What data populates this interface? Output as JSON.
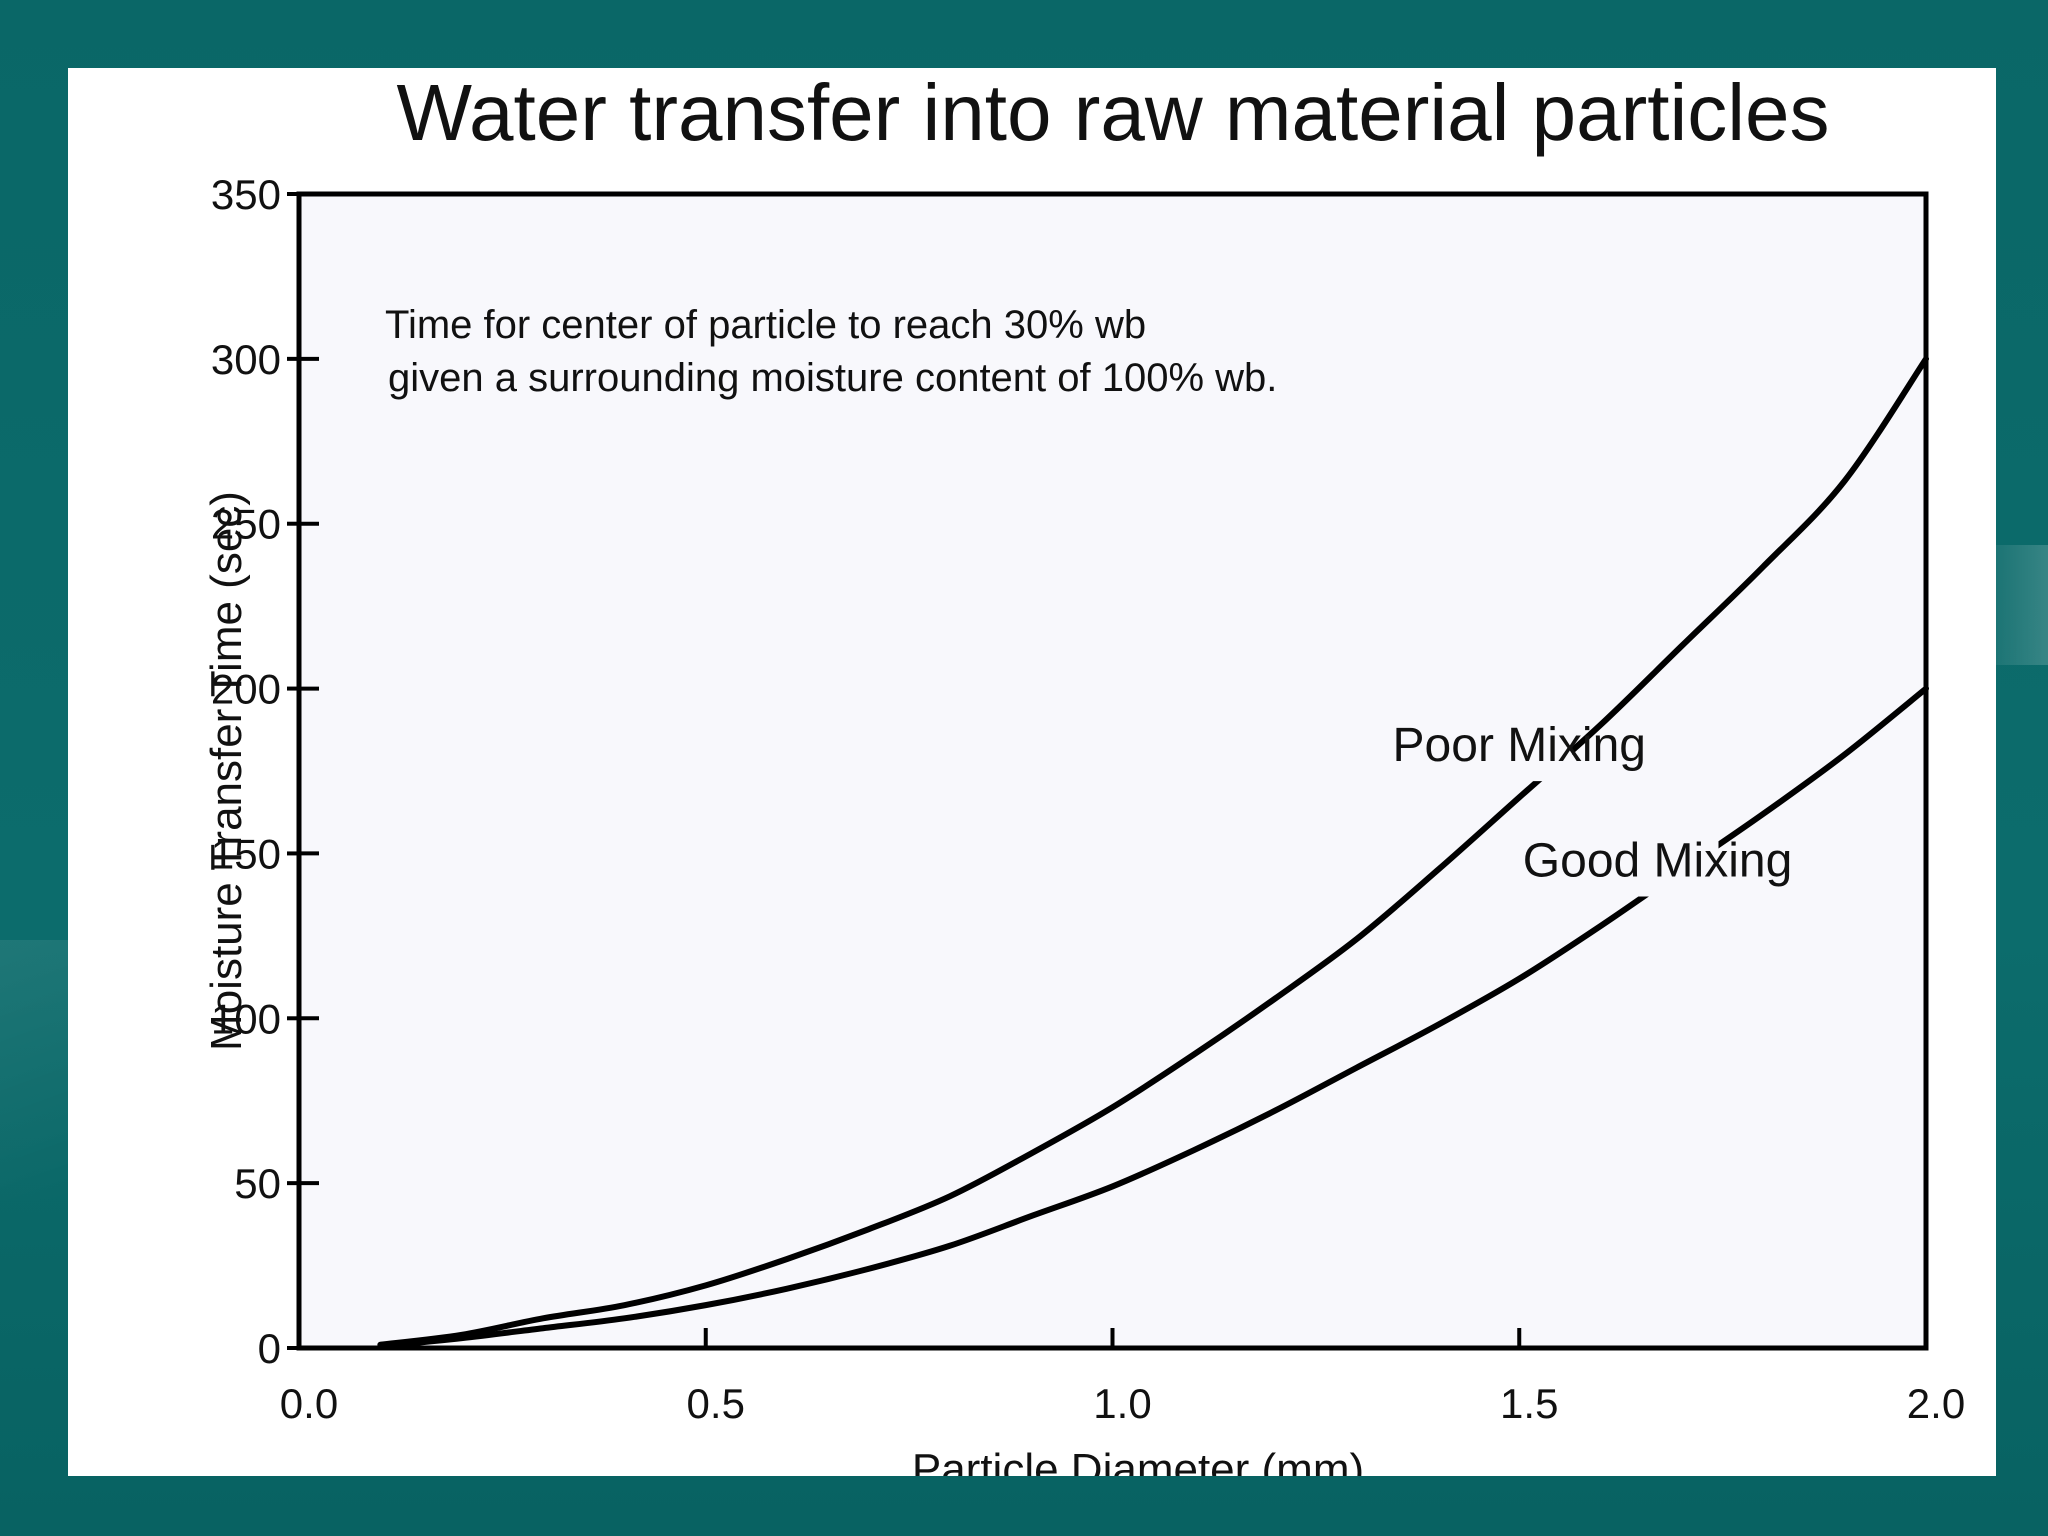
{
  "colors": {
    "background": "#0b6a6a",
    "slide": "#ffffff",
    "plot_area": "#f8f8fc",
    "ink": "#000000"
  },
  "chart_data": {
    "type": "line",
    "title": "Water transfer into raw material particles",
    "xlabel": "Particle Diameter (mm)",
    "ylabel": "Moisture Transfer Time (sec)",
    "xlim": [
      0.0,
      2.0
    ],
    "ylim": [
      0,
      350
    ],
    "xticks": [
      "0.0",
      "0.5",
      "1.0",
      "1.5",
      "2.0"
    ],
    "yticks": [
      "0",
      "50",
      "100",
      "150",
      "200",
      "250",
      "300",
      "350"
    ],
    "grid": false,
    "annotation": [
      "Time for center of particle to reach 30% wb",
      "given a surrounding moisture content of  100% wb."
    ],
    "series": [
      {
        "name": "Poor Mixing",
        "x": [
          0.1,
          0.2,
          0.3,
          0.4,
          0.5,
          0.6,
          0.7,
          0.8,
          0.9,
          1.0,
          1.1,
          1.2,
          1.3,
          1.4,
          1.5,
          1.6,
          1.7,
          1.8,
          1.9,
          2.0
        ],
        "y": [
          1,
          4,
          9,
          13,
          19,
          27,
          36,
          46,
          59,
          73,
          89,
          106,
          124,
          145,
          167,
          189,
          213,
          237,
          263,
          300
        ]
      },
      {
        "name": "Good Mixing",
        "x": [
          0.1,
          0.2,
          0.3,
          0.4,
          0.5,
          0.6,
          0.7,
          0.8,
          0.9,
          1.0,
          1.1,
          1.2,
          1.3,
          1.4,
          1.5,
          1.6,
          1.7,
          1.8,
          1.9,
          2.0
        ],
        "y": [
          0.5,
          3,
          6,
          9,
          13,
          18,
          24,
          31,
          40,
          49,
          60,
          72,
          85,
          98,
          112,
          128,
          145,
          162,
          180,
          200
        ]
      }
    ]
  }
}
